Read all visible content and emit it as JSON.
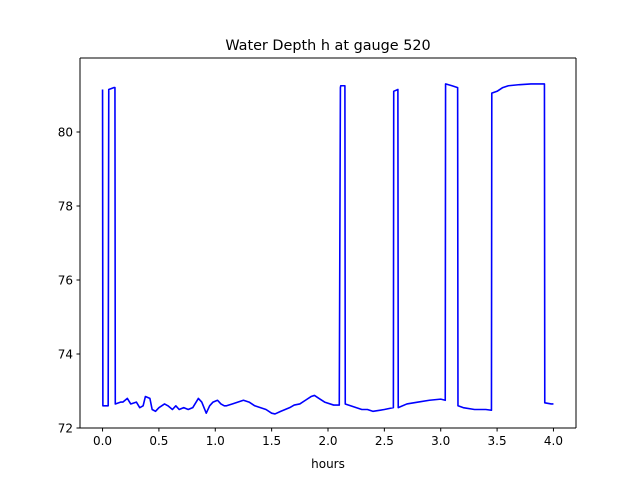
{
  "chart_data": {
    "type": "line",
    "title": "Water Depth h at gauge 520",
    "xlabel": "hours",
    "ylabel": "",
    "xlim": [
      -0.2,
      4.2
    ],
    "ylim": [
      72.0,
      82.0
    ],
    "xticks": [
      0.0,
      0.5,
      1.0,
      1.5,
      2.0,
      2.5,
      3.0,
      3.5,
      4.0
    ],
    "xtick_labels": [
      "0.0",
      "0.5",
      "1.0",
      "1.5",
      "2.0",
      "2.5",
      "3.0",
      "3.5",
      "4.0"
    ],
    "yticks": [
      72,
      74,
      76,
      78,
      80
    ],
    "ytick_labels": [
      "72",
      "74",
      "76",
      "78",
      "80"
    ],
    "grid": false,
    "legend": "none",
    "series": [
      {
        "color": "#0000ff",
        "x": [
          0.0,
          0.003,
          0.01,
          0.05,
          0.055,
          0.1,
          0.11,
          0.113,
          0.16,
          0.18,
          0.22,
          0.25,
          0.3,
          0.33,
          0.36,
          0.38,
          0.42,
          0.44,
          0.47,
          0.5,
          0.55,
          0.58,
          0.62,
          0.65,
          0.68,
          0.72,
          0.76,
          0.8,
          0.85,
          0.88,
          0.92,
          0.95,
          0.98,
          1.02,
          1.05,
          1.08,
          1.1,
          1.15,
          1.2,
          1.25,
          1.3,
          1.35,
          1.4,
          1.45,
          1.5,
          1.53,
          1.58,
          1.62,
          1.66,
          1.7,
          1.75,
          1.8,
          1.85,
          1.88,
          1.92,
          1.97,
          2.05,
          2.1,
          2.11,
          2.113,
          2.15,
          2.153,
          2.2,
          2.3,
          2.35,
          2.4,
          2.5,
          2.58,
          2.583,
          2.62,
          2.623,
          2.7,
          2.8,
          2.9,
          3.0,
          3.04,
          3.043,
          3.1,
          3.15,
          3.153,
          3.2,
          3.3,
          3.4,
          3.45,
          3.453,
          3.5,
          3.55,
          3.6,
          3.7,
          3.8,
          3.9,
          3.92,
          3.923,
          3.98,
          4.0
        ],
        "y": [
          81.15,
          72.6,
          72.6,
          72.6,
          81.15,
          81.2,
          81.2,
          72.65,
          72.7,
          72.7,
          72.8,
          72.65,
          72.7,
          72.55,
          72.6,
          72.85,
          72.8,
          72.5,
          72.45,
          72.55,
          72.65,
          72.6,
          72.5,
          72.6,
          72.5,
          72.55,
          72.5,
          72.55,
          72.8,
          72.7,
          72.4,
          72.6,
          72.7,
          72.75,
          72.65,
          72.6,
          72.6,
          72.65,
          72.7,
          72.75,
          72.7,
          72.6,
          72.55,
          72.5,
          72.4,
          72.38,
          72.45,
          72.5,
          72.55,
          72.62,
          72.65,
          72.75,
          72.85,
          72.88,
          72.8,
          72.7,
          72.62,
          72.62,
          81.2,
          81.25,
          81.25,
          72.65,
          72.6,
          72.5,
          72.5,
          72.45,
          72.5,
          72.55,
          81.1,
          81.15,
          72.55,
          72.65,
          72.7,
          72.75,
          72.78,
          72.75,
          81.3,
          81.25,
          81.2,
          72.6,
          72.55,
          72.5,
          72.5,
          72.48,
          81.05,
          81.1,
          81.2,
          81.25,
          81.28,
          81.3,
          81.3,
          81.3,
          72.68,
          72.65,
          72.65
        ]
      }
    ]
  }
}
